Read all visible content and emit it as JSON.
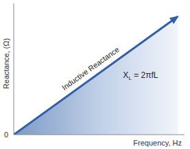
{
  "chart_data": {
    "type": "area",
    "x_label": "Frequency, Hz",
    "y_label": "Reactance, (Ω)",
    "annotations": [
      "Inductive Reactance",
      "XL = 2πfL"
    ],
    "x": [
      0,
      0.96
    ],
    "values": [
      0,
      0.9
    ],
    "color": "#2e5fa8",
    "xlim": [
      0,
      1
    ],
    "ylim": [
      0,
      1
    ],
    "xticks": [],
    "yticks": [
      0
    ],
    "tick_labels": "y",
    "grid": false
  }
}
